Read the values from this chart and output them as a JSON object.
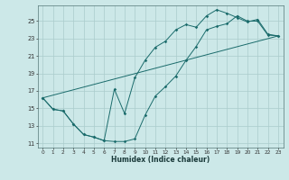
{
  "xlabel": "Humidex (Indice chaleur)",
  "bg_color": "#cce8e8",
  "grid_color": "#aacccc",
  "line_color": "#1a6b6b",
  "xlim": [
    -0.5,
    23.5
  ],
  "ylim": [
    10.5,
    26.8
  ],
  "xticks": [
    0,
    1,
    2,
    3,
    4,
    5,
    6,
    7,
    8,
    9,
    10,
    11,
    12,
    13,
    14,
    15,
    16,
    17,
    18,
    19,
    20,
    21,
    22,
    23
  ],
  "yticks": [
    11,
    13,
    15,
    17,
    19,
    21,
    23,
    25
  ],
  "line1_x": [
    0,
    1,
    2,
    3,
    4,
    5,
    6,
    7,
    8,
    9,
    10,
    11,
    12,
    13,
    14,
    15,
    16,
    17,
    18,
    19,
    20,
    21,
    22,
    23
  ],
  "line1_y": [
    16.2,
    14.9,
    14.7,
    13.2,
    12.0,
    11.7,
    11.3,
    11.2,
    11.2,
    11.5,
    14.2,
    16.4,
    17.5,
    18.7,
    20.5,
    22.1,
    24.0,
    24.4,
    24.7,
    25.6,
    25.0,
    25.0,
    23.4,
    23.3
  ],
  "line2_x": [
    0,
    1,
    2,
    3,
    4,
    5,
    6,
    7,
    8,
    9,
    10,
    11,
    12,
    13,
    14,
    15,
    16,
    17,
    18,
    19,
    20,
    21,
    22,
    23
  ],
  "line2_y": [
    16.2,
    14.9,
    14.7,
    13.2,
    12.0,
    11.7,
    11.3,
    17.2,
    14.4,
    18.5,
    20.5,
    22.0,
    22.7,
    24.0,
    24.6,
    24.3,
    25.6,
    26.3,
    25.9,
    25.4,
    24.9,
    25.2,
    23.5,
    23.3
  ],
  "line3_x": [
    0,
    23
  ],
  "line3_y": [
    16.2,
    23.3
  ]
}
